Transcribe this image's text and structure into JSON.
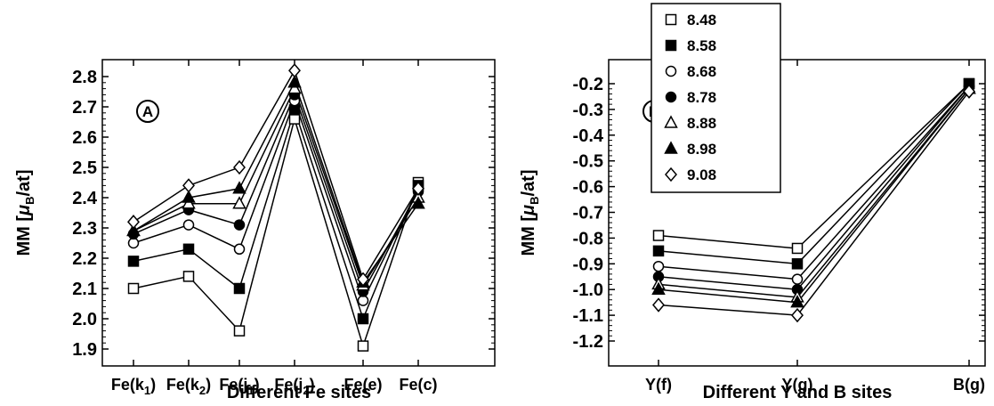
{
  "chart_data": [
    {
      "type": "line",
      "panel_label": "A",
      "categories": [
        "Fe(k1)",
        "Fe(k2)",
        "Fe(j1)",
        "Fe(j2)",
        "Fe(e)",
        "Fe(c)"
      ],
      "category_labels": [
        {
          "main": "Fe(k",
          "sub": "1",
          "tail": ")"
        },
        {
          "main": "Fe(k",
          "sub": "2",
          "tail": ")"
        },
        {
          "main": "Fe(j",
          "sub": "1",
          "tail": ")"
        },
        {
          "main": "Fe(j",
          "sub": "2",
          "tail": ")"
        },
        {
          "main": "Fe(e)",
          "sub": "",
          "tail": ""
        },
        {
          "main": "Fe(c)",
          "sub": "",
          "tail": ""
        }
      ],
      "xlabel": "Different Fe sites",
      "ylabel": {
        "prefix": "MM [",
        "mu": "μ",
        "sub": "B",
        "suffix": "/at]"
      },
      "ylim": [
        1.9,
        2.8
      ],
      "yticks": [
        "1.9",
        "2.0",
        "2.1",
        "2.2",
        "2.3",
        "2.4",
        "2.5",
        "2.6",
        "2.7",
        "2.8"
      ],
      "series": [
        {
          "name": "8.48",
          "marker": "square-open",
          "values": [
            2.1,
            2.14,
            1.96,
            2.66,
            1.91,
            2.45
          ]
        },
        {
          "name": "8.58",
          "marker": "square-filled",
          "values": [
            2.19,
            2.23,
            2.1,
            2.69,
            2.0,
            2.44
          ]
        },
        {
          "name": "8.68",
          "marker": "circle-open",
          "values": [
            2.25,
            2.31,
            2.23,
            2.72,
            2.06,
            2.43
          ]
        },
        {
          "name": "8.78",
          "marker": "circle-filled",
          "values": [
            2.28,
            2.36,
            2.31,
            2.74,
            2.09,
            2.42
          ]
        },
        {
          "name": "8.88",
          "marker": "triangle-open",
          "values": [
            2.29,
            2.38,
            2.38,
            2.76,
            2.11,
            2.4
          ]
        },
        {
          "name": "8.98",
          "marker": "triangle-filled",
          "values": [
            2.29,
            2.4,
            2.43,
            2.78,
            2.12,
            2.38
          ]
        },
        {
          "name": "9.08",
          "marker": "diamond-open",
          "values": [
            2.32,
            2.44,
            2.5,
            2.82,
            2.13,
            2.43
          ]
        }
      ]
    },
    {
      "type": "line",
      "panel_label": "B",
      "categories": [
        "Y(f)",
        "Y(g)",
        "B(g)"
      ],
      "category_labels": [
        {
          "main": "Y(f)",
          "sub": "",
          "tail": ""
        },
        {
          "main": "Y(g)",
          "sub": "",
          "tail": ""
        },
        {
          "main": "B(g)",
          "sub": "",
          "tail": ""
        }
      ],
      "xlabel": "Different Y and B sites",
      "ylabel": {
        "prefix": "MM [",
        "mu": "μ",
        "sub": "B",
        "suffix": "/at]"
      },
      "ylim": [
        -1.2,
        -0.1
      ],
      "yticks": [
        "-1.2",
        "-1.1",
        "-1.0",
        "-0.9",
        "-0.8",
        "-0.7",
        "-0.6",
        "-0.5",
        "-0.4",
        "-0.3",
        "-0.2"
      ],
      "series": [
        {
          "name": "8.48",
          "marker": "square-open",
          "values": [
            -0.79,
            -0.84,
            -0.2
          ]
        },
        {
          "name": "8.58",
          "marker": "square-filled",
          "values": [
            -0.85,
            -0.9,
            -0.2
          ]
        },
        {
          "name": "8.68",
          "marker": "circle-open",
          "values": [
            -0.91,
            -0.96,
            -0.21
          ]
        },
        {
          "name": "8.78",
          "marker": "circle-filled",
          "values": [
            -0.95,
            -1.0,
            -0.21
          ]
        },
        {
          "name": "8.88",
          "marker": "triangle-open",
          "values": [
            -0.98,
            -1.03,
            -0.22
          ]
        },
        {
          "name": "8.98",
          "marker": "triangle-filled",
          "values": [
            -1.0,
            -1.05,
            -0.22
          ]
        },
        {
          "name": "9.08",
          "marker": "diamond-open",
          "values": [
            -1.06,
            -1.1,
            -0.23
          ]
        }
      ],
      "legend": {
        "placement": "top-left, above plot",
        "entries": [
          "8.48",
          "8.58",
          "8.68",
          "8.78",
          "8.88",
          "8.98",
          "9.08"
        ]
      }
    }
  ],
  "colors": {
    "line": "#000000",
    "background": "#ffffff"
  }
}
